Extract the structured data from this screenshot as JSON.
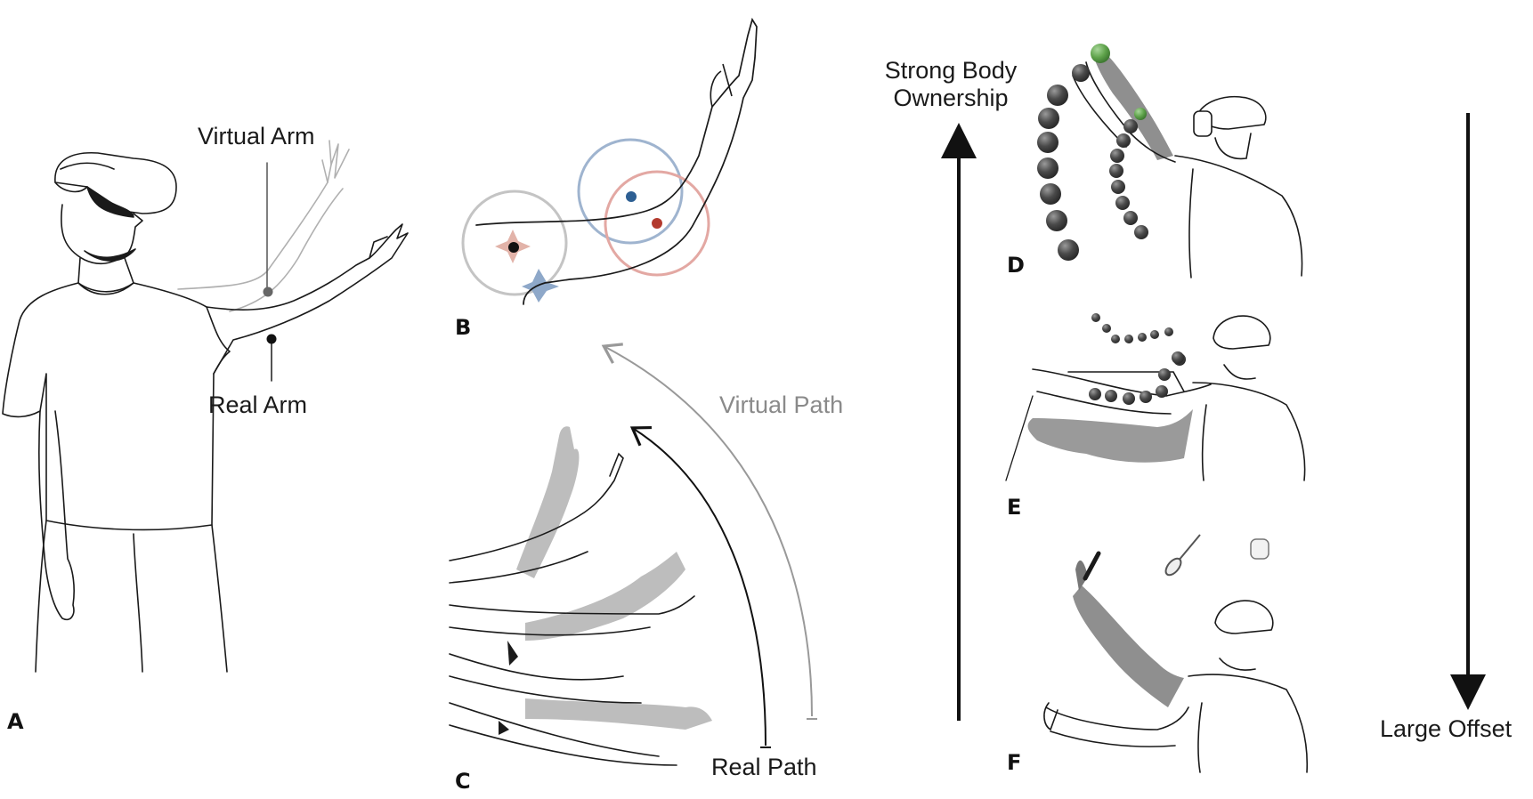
{
  "panels": {
    "A": {
      "letter": "A",
      "virtual_arm": "Virtual Arm",
      "real_arm": "Real Arm"
    },
    "B": {
      "letter": "B"
    },
    "C": {
      "letter": "C",
      "virtual_path": "Virtual Path",
      "real_path": "Real Path"
    },
    "D": {
      "letter": "D"
    },
    "E": {
      "letter": "E"
    },
    "F": {
      "letter": "F"
    }
  },
  "axis": {
    "top_label_line1": "Strong Body",
    "top_label_line2": "Ownership",
    "bottom_label": "Large Offset"
  },
  "colors": {
    "line": "#1a1a1a",
    "virtual_arm": "#a9a9a9",
    "ghost_arm": "#8f8f8f",
    "blue_ring": "#9fb4cf",
    "red_ring": "#e3a8a3",
    "grey_ring": "#c4c4c4",
    "blue_dot": "#2d5f93",
    "red_dot": "#b33a2e",
    "pink_star": "#e2b3a9",
    "blue_star": "#8ea8c9",
    "ball": "#4a4a4a",
    "green_ball": "#5fa34b"
  }
}
